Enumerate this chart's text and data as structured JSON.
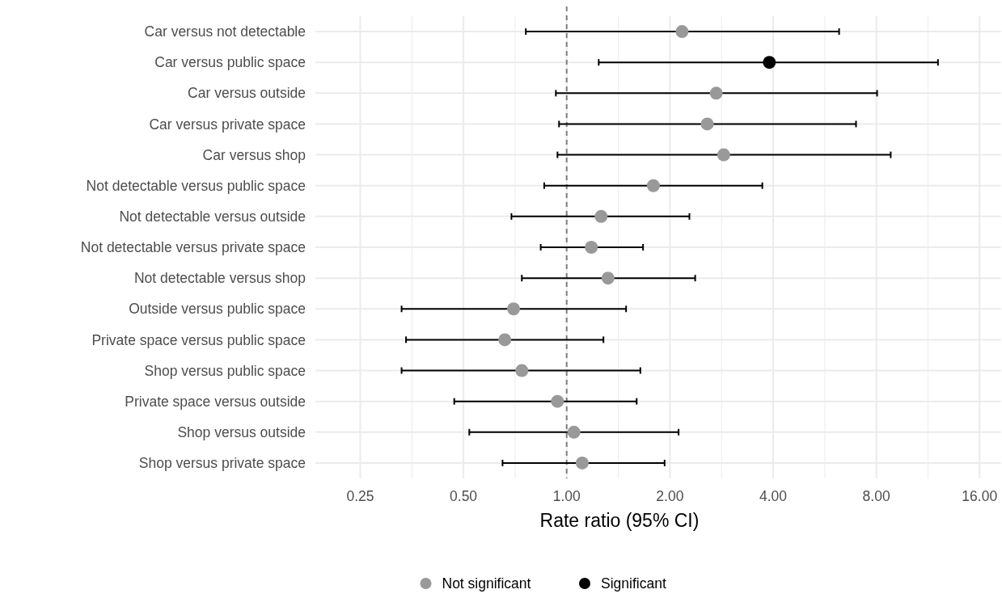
{
  "chart_data": {
    "type": "scatter",
    "orientation": "horizontal",
    "xlabel": "Rate ratio (95% CI)",
    "categories": [
      "Car versus not detectable",
      "Car versus public space",
      "Car versus outside",
      "Car versus private space",
      "Car versus shop",
      "Not detectable versus public space",
      "Not detectable versus outside",
      "Not detectable versus private space",
      "Not detectable  versus shop",
      "Outside versus public space",
      "Private space versus public space",
      "Shop versus public space",
      "Private space versus outside",
      "Shop versus outside",
      "Shop versus private space"
    ],
    "series": [
      {
        "name": "Not significant",
        "color": "#999999",
        "values": [
          2.17,
          null,
          2.73,
          2.57,
          2.87,
          1.79,
          1.26,
          1.18,
          1.32,
          0.7,
          0.66,
          0.74,
          0.94,
          1.05,
          1.11
        ],
        "errors": [
          [
            0.76,
            6.23
          ],
          null,
          [
            0.93,
            8.04
          ],
          [
            0.95,
            6.98
          ],
          [
            0.94,
            8.81
          ],
          [
            0.86,
            3.72
          ],
          [
            0.69,
            2.28
          ],
          [
            0.84,
            1.67
          ],
          [
            0.74,
            2.37
          ],
          [
            0.33,
            1.49
          ],
          [
            0.34,
            1.28
          ],
          [
            0.33,
            1.64
          ],
          [
            0.47,
            1.6
          ],
          [
            0.52,
            2.12
          ],
          [
            0.65,
            1.93
          ]
        ]
      },
      {
        "name": "Significant",
        "color": "#000000",
        "values": [
          null,
          3.9,
          null,
          null,
          null,
          null,
          null,
          null,
          null,
          null,
          null,
          null,
          null,
          null,
          null
        ],
        "errors": [
          null,
          [
            1.24,
            12.1
          ],
          null,
          null,
          null,
          null,
          null,
          null,
          null,
          null,
          null,
          null,
          null,
          null,
          null
        ]
      }
    ],
    "log": "x",
    "xlim": [
      0.185,
      18.5
    ],
    "xticks": [
      {
        "value": 0.25,
        "label": "0.25"
      },
      {
        "value": 0.354,
        "label": null
      },
      {
        "value": 0.5,
        "label": "0.50"
      },
      {
        "value": 0.707,
        "label": null
      },
      {
        "value": 1,
        "label": "1.00"
      },
      {
        "value": 1.414,
        "label": null
      },
      {
        "value": 2,
        "label": "2.00"
      },
      {
        "value": 2.83,
        "label": null
      },
      {
        "value": 4,
        "label": "4.00"
      },
      {
        "value": 5.66,
        "label": null
      },
      {
        "value": 8,
        "label": "8.00"
      },
      {
        "value": 11.31,
        "label": null
      },
      {
        "value": 16,
        "label": "16.00"
      }
    ],
    "ref_lines": [
      {
        "axis": "x",
        "value": 1,
        "label": null,
        "color": "#808080",
        "line_style": "dashed"
      }
    ],
    "grid": true,
    "legend": "bottom",
    "marker": "circle"
  }
}
